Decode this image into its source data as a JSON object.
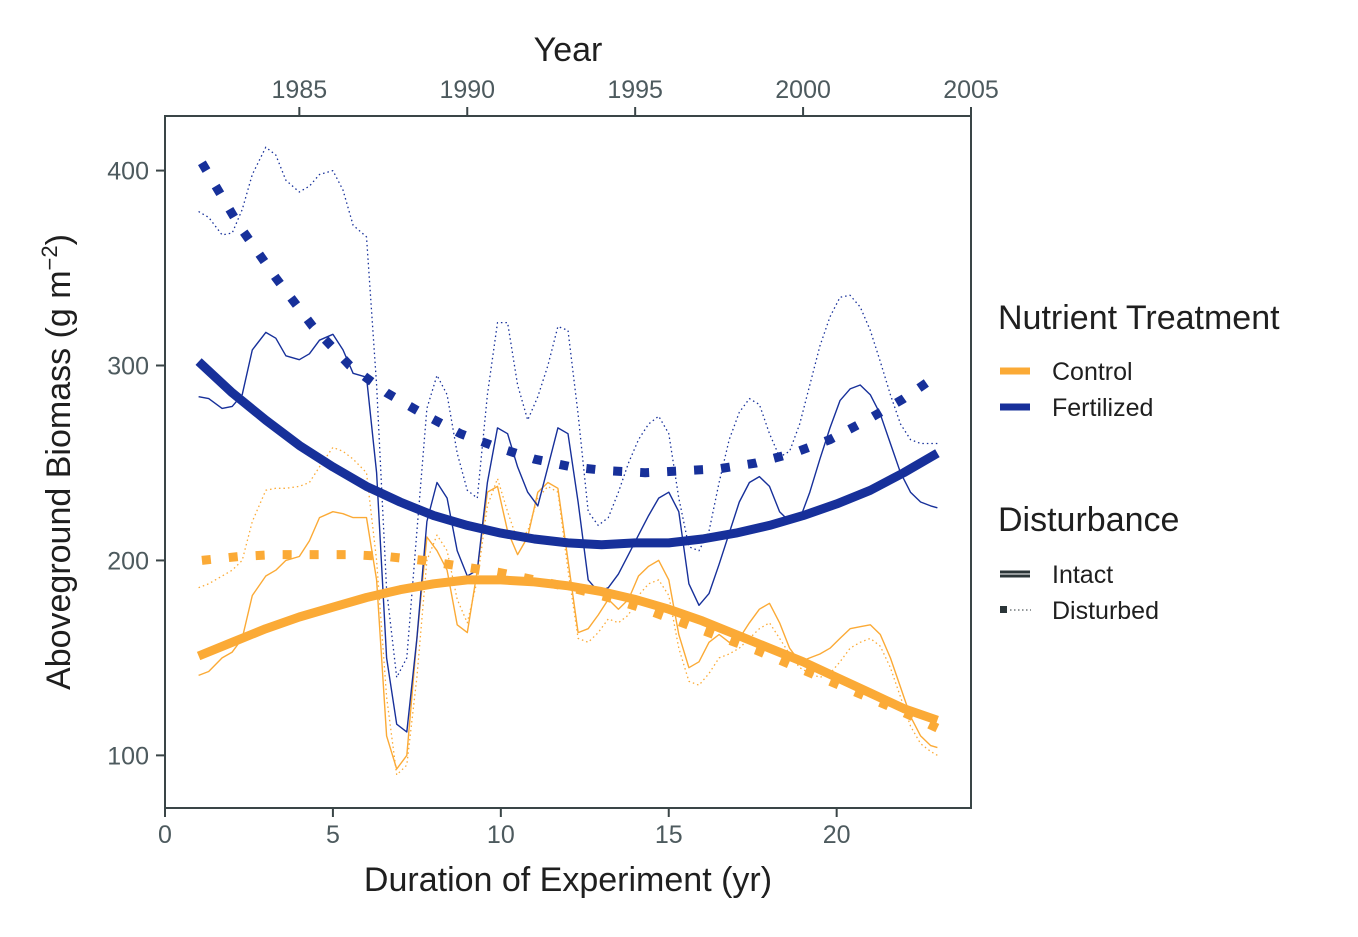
{
  "chart_data": {
    "type": "line",
    "xlabel": "Duration of Experiment (yr)",
    "x2label": "Year",
    "ylabel": "Aboveground Biomass (g m",
    "ylabel_sup": "−2",
    "ylabel_close": ")",
    "xlim": [
      0,
      24
    ],
    "ylim": [
      73,
      428
    ],
    "x_ticks": [
      0,
      5,
      10,
      15,
      20
    ],
    "x_tick_labels": [
      "0",
      "5",
      "10",
      "15",
      "20"
    ],
    "x2_ticks": [
      1985,
      1990,
      1995,
      2000,
      2005
    ],
    "x2_tick_labels": [
      "1985",
      "1990",
      "1995",
      "2000",
      "2005"
    ],
    "x2_offset_year": 1981,
    "y_ticks": [
      100,
      200,
      300,
      400
    ],
    "y_tick_labels": [
      "100",
      "200",
      "300",
      "400"
    ],
    "grid": false,
    "legend": [
      {
        "title": "Nutrient Treatment",
        "entries": [
          {
            "label": "Control",
            "color": "#FBAA36"
          },
          {
            "label": "Fertilized",
            "color": "#17309A"
          }
        ]
      },
      {
        "title": "Disturbance",
        "entries": [
          {
            "label": "Intact",
            "style": "solid"
          },
          {
            "label": "Disturbed",
            "style": "dotted"
          }
        ]
      }
    ],
    "legend_placement": "right",
    "colors": {
      "control": "#FBAA36",
      "fertilized": "#17309A"
    },
    "series": [
      {
        "key": "control-intact-raw",
        "treatment": "control",
        "disturbance": "intact",
        "kind": "raw",
        "x": [
          1,
          1.3,
          1.7,
          2,
          2.3,
          2.6,
          3,
          3.3,
          3.6,
          4,
          4.3,
          4.6,
          5,
          5.3,
          5.6,
          6,
          6.3,
          6.6,
          6.9,
          7.2,
          7.5,
          7.8,
          8.1,
          8.4,
          8.7,
          9,
          9.3,
          9.6,
          9.9,
          10.2,
          10.5,
          10.8,
          11.1,
          11.4,
          11.7,
          12,
          12.3,
          12.6,
          12.9,
          13.2,
          13.5,
          13.8,
          14.1,
          14.4,
          14.7,
          15,
          15.3,
          15.6,
          15.9,
          16.2,
          16.5,
          16.8,
          17.1,
          17.4,
          17.7,
          18,
          18.3,
          18.6,
          18.9,
          19.2,
          19.5,
          19.8,
          20.1,
          20.4,
          20.7,
          21,
          21.3,
          21.6,
          21.9,
          22.2,
          22.5,
          22.8,
          23
        ],
        "y": [
          141,
          143,
          150,
          153,
          160,
          182,
          192,
          195,
          200,
          202,
          210,
          222,
          225,
          224,
          222,
          222,
          190,
          110,
          93,
          100,
          160,
          212,
          205,
          195,
          167,
          163,
          195,
          235,
          238,
          215,
          203,
          212,
          235,
          240,
          237,
          200,
          163,
          165,
          172,
          180,
          175,
          180,
          192,
          197,
          200,
          190,
          162,
          145,
          148,
          158,
          162,
          158,
          160,
          168,
          175,
          178,
          168,
          155,
          148,
          150,
          152,
          155,
          160,
          165,
          166,
          167,
          162,
          150,
          135,
          120,
          110,
          105,
          104
        ]
      },
      {
        "key": "control-disturbed-raw",
        "treatment": "control",
        "disturbance": "disturbed",
        "kind": "raw",
        "x": [
          1,
          1.3,
          1.7,
          2,
          2.3,
          2.6,
          3,
          3.3,
          3.6,
          4,
          4.3,
          4.6,
          5,
          5.3,
          5.6,
          6,
          6.3,
          6.6,
          6.9,
          7.2,
          7.5,
          7.8,
          8.1,
          8.4,
          8.7,
          9,
          9.3,
          9.6,
          9.9,
          10.2,
          10.5,
          10.8,
          11.1,
          11.4,
          11.7,
          12,
          12.3,
          12.6,
          12.9,
          13.2,
          13.5,
          13.8,
          14.1,
          14.4,
          14.7,
          15,
          15.3,
          15.6,
          15.9,
          16.2,
          16.5,
          16.8,
          17.1,
          17.4,
          17.7,
          18,
          18.3,
          18.6,
          18.9,
          19.2,
          19.5,
          19.8,
          20.1,
          20.4,
          20.7,
          21,
          21.3,
          21.6,
          21.9,
          22.2,
          22.5,
          22.8,
          23
        ],
        "y": [
          186,
          188,
          192,
          195,
          200,
          220,
          236,
          237,
          237,
          238,
          240,
          248,
          258,
          256,
          252,
          245,
          200,
          130,
          90,
          95,
          140,
          200,
          213,
          205,
          180,
          168,
          190,
          228,
          242,
          225,
          210,
          215,
          232,
          238,
          235,
          195,
          160,
          158,
          163,
          170,
          168,
          172,
          182,
          188,
          190,
          182,
          155,
          138,
          136,
          142,
          150,
          152,
          155,
          160,
          165,
          168,
          160,
          152,
          145,
          142,
          140,
          142,
          148,
          155,
          158,
          160,
          156,
          145,
          130,
          115,
          106,
          102,
          100
        ]
      },
      {
        "key": "fertilized-intact-raw",
        "treatment": "fertilized",
        "disturbance": "intact",
        "kind": "raw",
        "x": [
          1,
          1.3,
          1.7,
          2,
          2.3,
          2.6,
          3,
          3.3,
          3.6,
          4,
          4.3,
          4.6,
          5,
          5.3,
          5.6,
          6,
          6.3,
          6.6,
          6.9,
          7.2,
          7.5,
          7.8,
          8.1,
          8.4,
          8.7,
          9,
          9.3,
          9.6,
          9.9,
          10.2,
          10.5,
          10.8,
          11.1,
          11.4,
          11.7,
          12,
          12.3,
          12.6,
          12.9,
          13.2,
          13.5,
          13.8,
          14.1,
          14.4,
          14.7,
          15,
          15.3,
          15.6,
          15.9,
          16.2,
          16.5,
          16.8,
          17.1,
          17.4,
          17.7,
          18,
          18.3,
          18.6,
          18.9,
          19.2,
          19.5,
          19.8,
          20.1,
          20.4,
          20.7,
          21,
          21.3,
          21.6,
          21.9,
          22.2,
          22.5,
          22.8,
          23
        ],
        "y": [
          284,
          283,
          278,
          279,
          285,
          308,
          317,
          314,
          305,
          303,
          306,
          313,
          316,
          308,
          296,
          294,
          245,
          150,
          116,
          112,
          160,
          220,
          240,
          232,
          205,
          192,
          195,
          240,
          268,
          265,
          248,
          235,
          228,
          248,
          268,
          265,
          230,
          190,
          184,
          186,
          193,
          203,
          213,
          223,
          232,
          235,
          225,
          188,
          177,
          183,
          198,
          214,
          230,
          240,
          243,
          238,
          225,
          220,
          221,
          235,
          252,
          268,
          282,
          288,
          290,
          285,
          275,
          260,
          245,
          235,
          230,
          228,
          227
        ]
      },
      {
        "key": "fertilized-disturbed-raw",
        "treatment": "fertilized",
        "disturbance": "disturbed",
        "kind": "raw",
        "x": [
          1,
          1.3,
          1.7,
          2,
          2.3,
          2.6,
          3,
          3.3,
          3.6,
          4,
          4.3,
          4.6,
          5,
          5.3,
          5.6,
          6,
          6.3,
          6.6,
          6.9,
          7.2,
          7.5,
          7.8,
          8.1,
          8.4,
          8.7,
          9,
          9.3,
          9.6,
          9.9,
          10.2,
          10.5,
          10.8,
          11.1,
          11.4,
          11.7,
          12,
          12.3,
          12.6,
          12.9,
          13.2,
          13.5,
          13.8,
          14.1,
          14.4,
          14.7,
          15,
          15.3,
          15.6,
          15.9,
          16.2,
          16.5,
          16.8,
          17.1,
          17.4,
          17.7,
          18,
          18.3,
          18.6,
          18.9,
          19.2,
          19.5,
          19.8,
          20.1,
          20.4,
          20.7,
          21,
          21.3,
          21.6,
          21.9,
          22.2,
          22.5,
          22.8,
          23
        ],
        "y": [
          379,
          376,
          367,
          368,
          380,
          398,
          412,
          408,
          395,
          389,
          392,
          398,
          400,
          390,
          372,
          366,
          290,
          185,
          140,
          150,
          215,
          278,
          295,
          285,
          255,
          236,
          232,
          285,
          322,
          322,
          290,
          272,
          284,
          300,
          320,
          318,
          275,
          225,
          218,
          222,
          235,
          250,
          262,
          270,
          274,
          265,
          232,
          207,
          205,
          215,
          240,
          262,
          276,
          283,
          280,
          265,
          253,
          256,
          270,
          290,
          310,
          325,
          335,
          336,
          330,
          318,
          302,
          285,
          270,
          262,
          260,
          260,
          260
        ]
      },
      {
        "key": "control-intact-fit",
        "treatment": "control",
        "disturbance": "intact",
        "kind": "fit",
        "x": [
          1,
          2,
          3,
          4,
          5,
          6,
          7,
          8,
          9,
          10,
          11,
          12,
          13,
          14,
          15,
          16,
          17,
          18,
          19,
          20,
          21,
          22,
          23
        ],
        "y": [
          151,
          158,
          165,
          171,
          176,
          181,
          185,
          188,
          190,
          190,
          189,
          187,
          184,
          180,
          175,
          169,
          162,
          155,
          148,
          140,
          132,
          124,
          118
        ]
      },
      {
        "key": "control-disturbed-fit",
        "treatment": "control",
        "disturbance": "disturbed",
        "kind": "fit",
        "x": [
          1.1,
          2.2,
          3.3,
          4.4,
          5.5,
          6.6,
          7.7,
          8.8,
          9.9,
          11,
          12.1,
          13.2,
          14.3,
          15.4,
          16.5,
          17.6,
          18.7,
          19.8,
          20.9,
          22,
          23
        ],
        "y": [
          200,
          202,
          203,
          203,
          203,
          202,
          200,
          197,
          194,
          190,
          186,
          181,
          175,
          168,
          161,
          154,
          146,
          138,
          130,
          122,
          114
        ]
      },
      {
        "key": "fertilized-intact-fit",
        "treatment": "fertilized",
        "disturbance": "intact",
        "kind": "fit",
        "x": [
          1,
          2,
          3,
          4,
          5,
          6,
          7,
          8,
          9,
          10,
          11,
          12,
          13,
          14,
          15,
          16,
          17,
          18,
          19,
          20,
          21,
          22,
          23
        ],
        "y": [
          302,
          286,
          272,
          259,
          248,
          238,
          230,
          223,
          218,
          214,
          211,
          209,
          208,
          209,
          209,
          211,
          214,
          218,
          223,
          229,
          236,
          245,
          255
        ]
      },
      {
        "key": "fertilized-disturbed-fit",
        "treatment": "fertilized",
        "disturbance": "disturbed",
        "kind": "fit",
        "x": [
          1.1,
          2.2,
          3.3,
          4.4,
          5.5,
          6.6,
          7.7,
          8.8,
          9.9,
          11,
          12.1,
          13.2,
          14.3,
          15.4,
          16.5,
          17.6,
          18.7,
          19.8,
          20.9,
          22,
          23
        ],
        "y": [
          404,
          372,
          345,
          320,
          300,
          286,
          275,
          265,
          258,
          252,
          248,
          246,
          245,
          246,
          247,
          250,
          255,
          262,
          272,
          283,
          295
        ]
      }
    ]
  }
}
